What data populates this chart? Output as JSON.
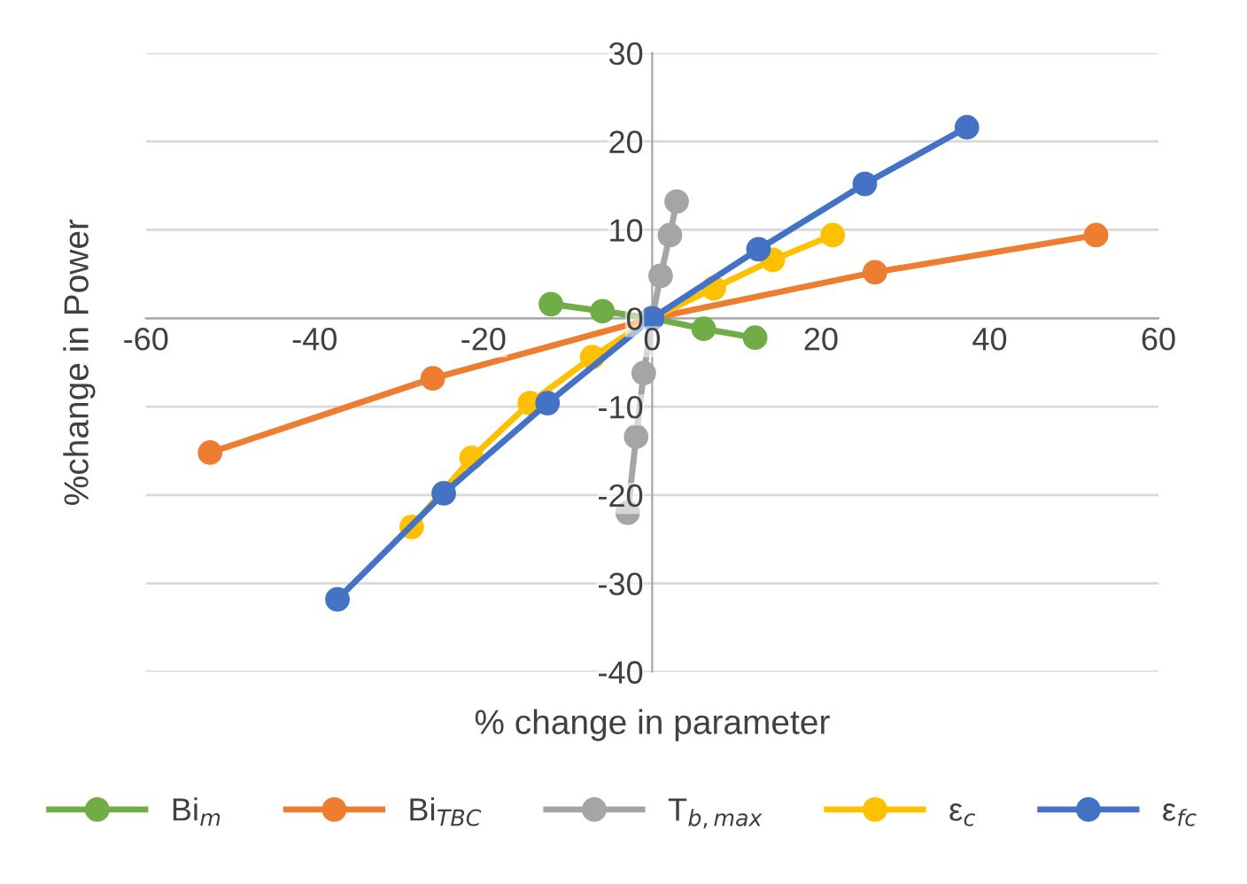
{
  "chart_data": {
    "type": "line",
    "xlabel": "% change in parameter",
    "ylabel": "%change in Power",
    "xlim": [
      -60,
      60
    ],
    "xticks": [
      -60,
      -40,
      -20,
      0,
      20,
      40,
      60
    ],
    "ylim": [
      -40,
      30
    ],
    "yticks": [
      -40,
      -30,
      -20,
      -10,
      0,
      10,
      20,
      30
    ],
    "grid": "y",
    "legend": "bottom",
    "marker": "circle",
    "line_style": "solid",
    "series": [
      {
        "name": "Bi$_{m}$",
        "color": "#70ad47",
        "x": [
          -12,
          -5.9,
          0,
          6.1,
          12.2
        ],
        "values": [
          1.6,
          0.8,
          0,
          -1.2,
          -2.2
        ]
      },
      {
        "name": "Bi$_{TBC}$",
        "color": "#ed7d31",
        "x": [
          -52.4,
          -26,
          0,
          26.4,
          52.6
        ],
        "values": [
          -15.2,
          -6.8,
          0,
          5.2,
          9.4
        ]
      },
      {
        "name": "T$_{b,max}$",
        "color": "#a5a5a5",
        "x": [
          -2.9,
          -1.9,
          -1,
          0,
          1,
          2.1,
          2.9
        ],
        "values": [
          -22,
          -13.4,
          -6.2,
          0,
          4.8,
          9.4,
          13.2
        ]
      },
      {
        "name": "ε$_{c}$",
        "color": "#ffc000",
        "x": [
          -28.5,
          -21.4,
          -14.5,
          -7.1,
          0,
          7.3,
          14.3,
          21.4
        ],
        "values": [
          -23.6,
          -15.8,
          -9.6,
          -4.4,
          0,
          3.4,
          6.6,
          9.4
        ]
      },
      {
        "name": "ε$_{fc}$",
        "color": "#4472c4",
        "x": [
          -37.3,
          -24.7,
          -12.4,
          0,
          12.6,
          25.2,
          37.3
        ],
        "values": [
          -31.8,
          -19.8,
          -9.6,
          0,
          7.8,
          15.2,
          21.6
        ]
      }
    ]
  }
}
